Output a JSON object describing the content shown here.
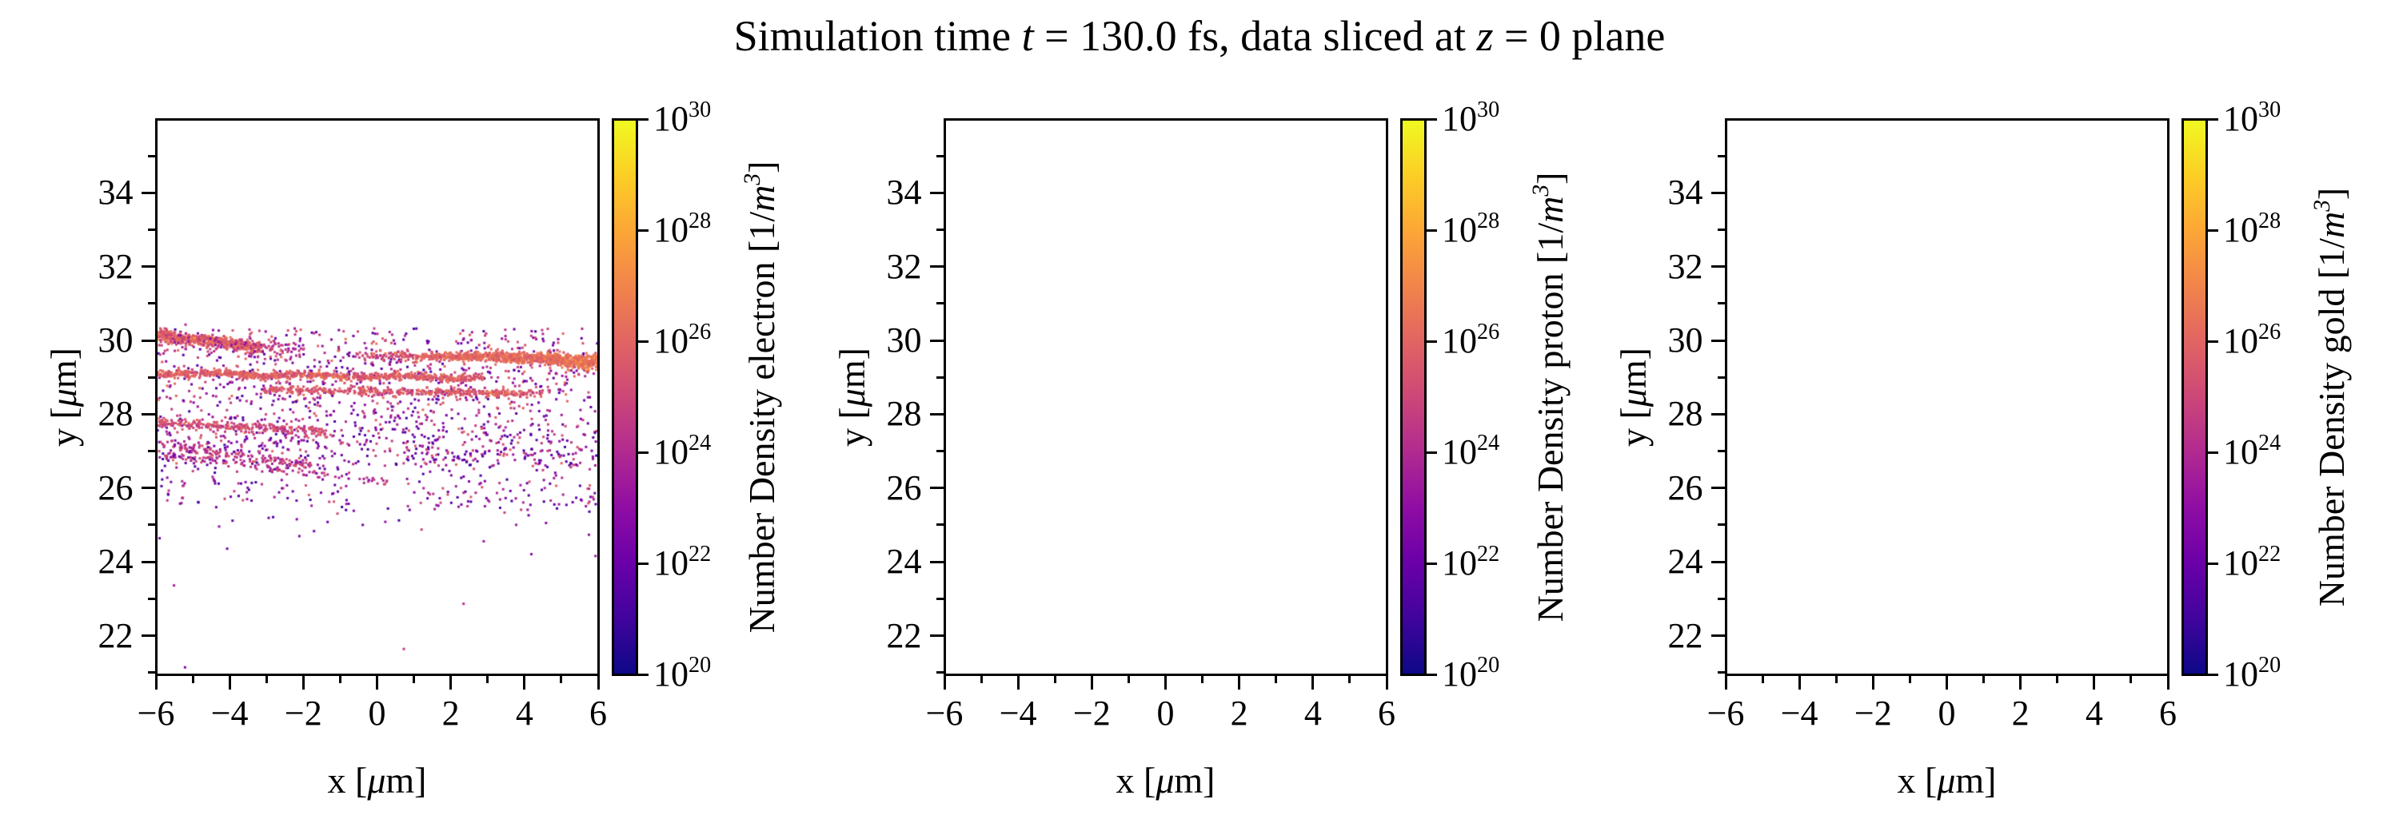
{
  "title_segments": [
    {
      "t": "Simulation time "
    },
    {
      "t": "t",
      "i": true
    },
    {
      "t": " = 130.0 fs, data sliced at "
    },
    {
      "t": "z",
      "i": true
    },
    {
      "t": " = 0 plane"
    }
  ],
  "title_text": "Simulation time t = 130.0 fs, data sliced at z = 0 plane",
  "colors": {
    "axes": "#000000",
    "text": "#000000",
    "background": "#ffffff"
  },
  "chart_data": [
    {
      "type": "scatter",
      "species": "electron",
      "xlabel": "x [μm]",
      "ylabel": "y [μm]",
      "xlabel_segments": [
        {
          "t": "x ["
        },
        {
          "t": "μ",
          "i": true
        },
        {
          "t": "m]"
        }
      ],
      "ylabel_segments": [
        {
          "t": "y ["
        },
        {
          "t": "μ",
          "i": true
        },
        {
          "t": "m]"
        }
      ],
      "xlim": [
        -6,
        6
      ],
      "ylim": [
        20.95,
        36.0
      ],
      "x_ticks": [
        -6,
        -4,
        -2,
        0,
        2,
        4,
        6
      ],
      "x_tick_labels": [
        "−6",
        "−4",
        "−2",
        "0",
        "2",
        "4",
        "6"
      ],
      "x_minor_ticks": [
        -5,
        -3,
        -1,
        1,
        3,
        5
      ],
      "y_ticks": [
        22,
        24,
        26,
        28,
        30,
        32,
        34
      ],
      "y_tick_labels": [
        "22",
        "24",
        "26",
        "28",
        "30",
        "32",
        "34"
      ],
      "y_minor_ticks": [
        21,
        23,
        25,
        27,
        29,
        31,
        33,
        35
      ],
      "colorbar": {
        "label": "Number Density electron [1/m³]",
        "label_segments": [
          {
            "t": "Number Density electron [1/"
          },
          {
            "t": "m",
            "i": true
          },
          {
            "t": "3",
            "i": true,
            "sup": true
          },
          {
            "t": "]"
          }
        ],
        "scale": "log",
        "range_exponents": [
          20,
          30
        ],
        "tick_exponents": [
          30,
          28,
          26,
          24,
          22,
          20
        ],
        "cmap": "plasma",
        "cmap_stops": [
          "#0d0887",
          "#41049d",
          "#6a00a8",
          "#8f0da4",
          "#b12a90",
          "#cc4778",
          "#e16462",
          "#f1844b",
          "#fca636",
          "#fcce25",
          "#f0f921"
        ]
      },
      "scatter": {
        "seed": 1337,
        "marker_px": 3,
        "log_density_to_color": "t = (log10(n) - 20) / 10 on plasma",
        "bands": [
          {
            "x0": -6.0,
            "x1": -3.2,
            "y0": 30.18,
            "y1": 29.83,
            "sd": 0.07,
            "n": 520,
            "ln": 25.9,
            "lsd": 0.55,
            "wig": 0.02,
            "wigf": 4
          },
          {
            "x0": -6.0,
            "x1": -2.0,
            "y0": 30.05,
            "y1": 29.75,
            "sd": 0.12,
            "n": 150,
            "ln": 24.6,
            "lsd": 0.9
          },
          {
            "x0": 0.8,
            "x1": 6.0,
            "y0": 29.58,
            "y1": 29.42,
            "sd": 0.045,
            "sdGrow": 0.05,
            "bump": 0.06,
            "pw": 0.65,
            "n": 1000,
            "ln": 25.9,
            "lnGrow": 0.6,
            "lsd": 0.45
          },
          {
            "x0": -0.6,
            "x1": 1.0,
            "y0": 29.62,
            "y1": 29.57,
            "sd": 0.06,
            "n": 70,
            "ln": 25.2,
            "lsd": 0.6
          },
          {
            "x0": -6.0,
            "x1": 2.9,
            "y0": 29.12,
            "y1": 28.99,
            "sd": 0.05,
            "n": 820,
            "ln": 25.8,
            "lsd": 0.5,
            "wig": 0.025,
            "wigf": 2.5
          },
          {
            "x0": -3.1,
            "x1": 4.6,
            "y0": 28.67,
            "y1": 28.57,
            "sd": 0.05,
            "n": 430,
            "ln": 25.6,
            "lsd": 0.55
          },
          {
            "x0": -6.0,
            "x1": -1.4,
            "y0": 27.78,
            "y1": 27.55,
            "sd": 0.06,
            "n": 270,
            "ln": 25.1,
            "lsd": 0.65
          },
          {
            "x0": -6.0,
            "x1": -1.8,
            "y0": 27.22,
            "y1": 26.6,
            "sd": 0.06,
            "n": 130,
            "ln": 24.5,
            "lsd": 0.7
          },
          {
            "x0": -5.8,
            "x1": 0.3,
            "y0": 26.9,
            "y1": 26.15,
            "sd": 0.05,
            "n": 100,
            "ln": 24.2,
            "lsd": 0.7
          }
        ],
        "clouds": [
          {
            "x0": -6,
            "x1": 6,
            "y0": 28.3,
            "y1": 30.35,
            "n": 700,
            "lmin": 21.2,
            "lmax": 25.4
          },
          {
            "x0": -6,
            "x1": 6,
            "y0": 26.6,
            "y1": 28.3,
            "n": 520,
            "lmin": 21.0,
            "lmax": 25.2
          },
          {
            "x0": -6,
            "x1": -0.8,
            "y0": 25.6,
            "y1": 27.6,
            "n": 150,
            "lmin": 21.0,
            "lmax": 24.8
          },
          {
            "x0": 0.8,
            "x1": 6,
            "y0": 25.4,
            "y1": 27.6,
            "n": 180,
            "lmin": 21.0,
            "lmax": 24.8
          },
          {
            "x0": -6,
            "x1": 6,
            "y0": 24.6,
            "y1": 25.9,
            "n": 45,
            "lmin": 21.0,
            "lmax": 24.0
          }
        ],
        "points": [
          [
            -5.55,
            23.35,
            23.6
          ],
          [
            0.72,
            21.62,
            24.6
          ],
          [
            -5.25,
            21.12,
            22.6
          ],
          [
            4.2,
            24.2,
            22.8
          ],
          [
            2.35,
            22.85,
            24.2
          ],
          [
            5.95,
            24.15,
            23.2
          ],
          [
            -4.1,
            24.35,
            22.5
          ],
          [
            2.9,
            24.55,
            23.5
          ],
          [
            -2.2,
            25.15,
            22.8
          ],
          [
            4.6,
            25.05,
            23.0
          ]
        ]
      }
    },
    {
      "type": "scatter",
      "species": "proton",
      "xlabel": "x [μm]",
      "ylabel": "y [μm]",
      "xlabel_segments": [
        {
          "t": "x ["
        },
        {
          "t": "μ",
          "i": true
        },
        {
          "t": "m]"
        }
      ],
      "ylabel_segments": [
        {
          "t": "y ["
        },
        {
          "t": "μ",
          "i": true
        },
        {
          "t": "m]"
        }
      ],
      "xlim": [
        -6,
        6
      ],
      "ylim": [
        20.95,
        36.0
      ],
      "x_ticks": [
        -6,
        -4,
        -2,
        0,
        2,
        4,
        6
      ],
      "x_tick_labels": [
        "−6",
        "−4",
        "−2",
        "0",
        "2",
        "4",
        "6"
      ],
      "x_minor_ticks": [
        -5,
        -3,
        -1,
        1,
        3,
        5
      ],
      "y_ticks": [
        22,
        24,
        26,
        28,
        30,
        32,
        34
      ],
      "y_tick_labels": [
        "22",
        "24",
        "26",
        "28",
        "30",
        "32",
        "34"
      ],
      "y_minor_ticks": [
        21,
        23,
        25,
        27,
        29,
        31,
        33,
        35
      ],
      "colorbar": {
        "label": "Number Density proton [1/m³]",
        "label_segments": [
          {
            "t": "Number Density proton [1/"
          },
          {
            "t": "m",
            "i": true
          },
          {
            "t": "3",
            "i": true,
            "sup": true
          },
          {
            "t": "]"
          }
        ],
        "scale": "log",
        "range_exponents": [
          20,
          30
        ],
        "tick_exponents": [
          30,
          28,
          26,
          24,
          22,
          20
        ],
        "cmap": "plasma",
        "cmap_stops": [
          "#0d0887",
          "#41049d",
          "#6a00a8",
          "#8f0da4",
          "#b12a90",
          "#cc4778",
          "#e16462",
          "#f1844b",
          "#fca636",
          "#fcce25",
          "#f0f921"
        ]
      },
      "scatter": {
        "seed": 0,
        "marker_px": 3,
        "bands": [],
        "clouds": [],
        "points": []
      }
    },
    {
      "type": "scatter",
      "species": "gold",
      "xlabel": "x [μm]",
      "ylabel": "y [μm]",
      "xlabel_segments": [
        {
          "t": "x ["
        },
        {
          "t": "μ",
          "i": true
        },
        {
          "t": "m]"
        }
      ],
      "ylabel_segments": [
        {
          "t": "y ["
        },
        {
          "t": "μ",
          "i": true
        },
        {
          "t": "m]"
        }
      ],
      "xlim": [
        -6,
        6
      ],
      "ylim": [
        20.95,
        36.0
      ],
      "x_ticks": [
        -6,
        -4,
        -2,
        0,
        2,
        4,
        6
      ],
      "x_tick_labels": [
        "−6",
        "−4",
        "−2",
        "0",
        "2",
        "4",
        "6"
      ],
      "x_minor_ticks": [
        -5,
        -3,
        -1,
        1,
        3,
        5
      ],
      "y_ticks": [
        22,
        24,
        26,
        28,
        30,
        32,
        34
      ],
      "y_tick_labels": [
        "22",
        "24",
        "26",
        "28",
        "30",
        "32",
        "34"
      ],
      "y_minor_ticks": [
        21,
        23,
        25,
        27,
        29,
        31,
        33,
        35
      ],
      "colorbar": {
        "label": "Number Density gold [1/m³]",
        "label_segments": [
          {
            "t": "Number Density gold [1/"
          },
          {
            "t": "m",
            "i": true
          },
          {
            "t": "3",
            "i": true,
            "sup": true
          },
          {
            "t": "]"
          }
        ],
        "scale": "log",
        "range_exponents": [
          20,
          30
        ],
        "tick_exponents": [
          30,
          28,
          26,
          24,
          22,
          20
        ],
        "cmap": "plasma",
        "cmap_stops": [
          "#0d0887",
          "#41049d",
          "#6a00a8",
          "#8f0da4",
          "#b12a90",
          "#cc4778",
          "#e16462",
          "#f1844b",
          "#fca636",
          "#fcce25",
          "#f0f921"
        ]
      },
      "scatter": {
        "seed": 0,
        "marker_px": 3,
        "bands": [],
        "clouds": [],
        "points": []
      }
    }
  ]
}
